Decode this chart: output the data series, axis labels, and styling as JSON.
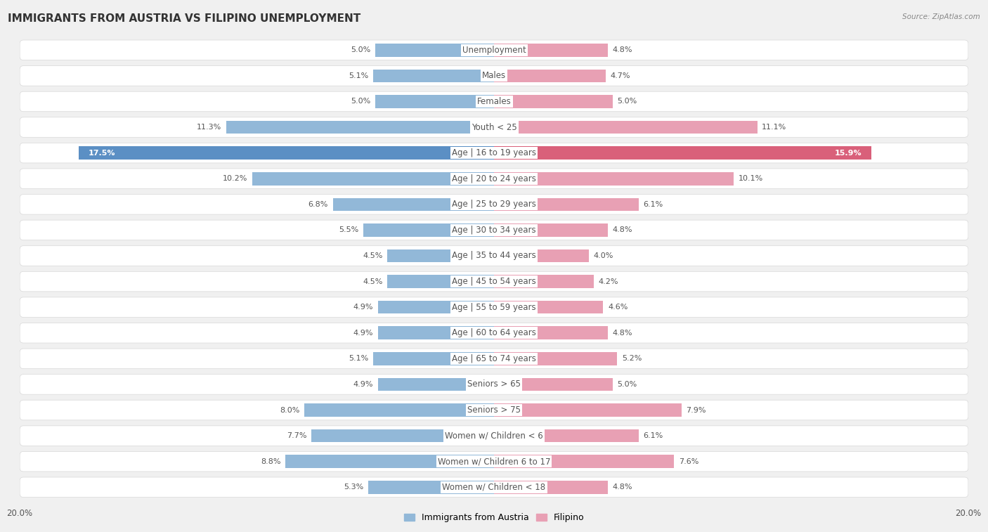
{
  "title": "IMMIGRANTS FROM AUSTRIA VS FILIPINO UNEMPLOYMENT",
  "source": "Source: ZipAtlas.com",
  "categories": [
    "Unemployment",
    "Males",
    "Females",
    "Youth < 25",
    "Age | 16 to 19 years",
    "Age | 20 to 24 years",
    "Age | 25 to 29 years",
    "Age | 30 to 34 years",
    "Age | 35 to 44 years",
    "Age | 45 to 54 years",
    "Age | 55 to 59 years",
    "Age | 60 to 64 years",
    "Age | 65 to 74 years",
    "Seniors > 65",
    "Seniors > 75",
    "Women w/ Children < 6",
    "Women w/ Children 6 to 17",
    "Women w/ Children < 18"
  ],
  "austria_values": [
    5.0,
    5.1,
    5.0,
    11.3,
    17.5,
    10.2,
    6.8,
    5.5,
    4.5,
    4.5,
    4.9,
    4.9,
    5.1,
    4.9,
    8.0,
    7.7,
    8.8,
    5.3
  ],
  "filipino_values": [
    4.8,
    4.7,
    5.0,
    11.1,
    15.9,
    10.1,
    6.1,
    4.8,
    4.0,
    4.2,
    4.6,
    4.8,
    5.2,
    5.0,
    7.9,
    6.1,
    7.6,
    4.8
  ],
  "austria_color": "#92b8d8",
  "filipino_color": "#e8a0b4",
  "austria_highlight_color": "#5b8fc4",
  "filipino_highlight_color": "#d9607a",
  "highlight_row": "Age | 16 to 19 years",
  "axis_max": 20.0,
  "page_bg": "#f0f0f0",
  "row_bg": "#ffffff",
  "sep_color": "#d8d8d8",
  "label_color": "#555555",
  "title_color": "#333333",
  "value_color": "#555555",
  "legend_austria": "Immigrants from Austria",
  "legend_filipino": "Filipino",
  "title_fontsize": 11,
  "label_fontsize": 8.5,
  "value_fontsize": 8,
  "source_fontsize": 7.5
}
